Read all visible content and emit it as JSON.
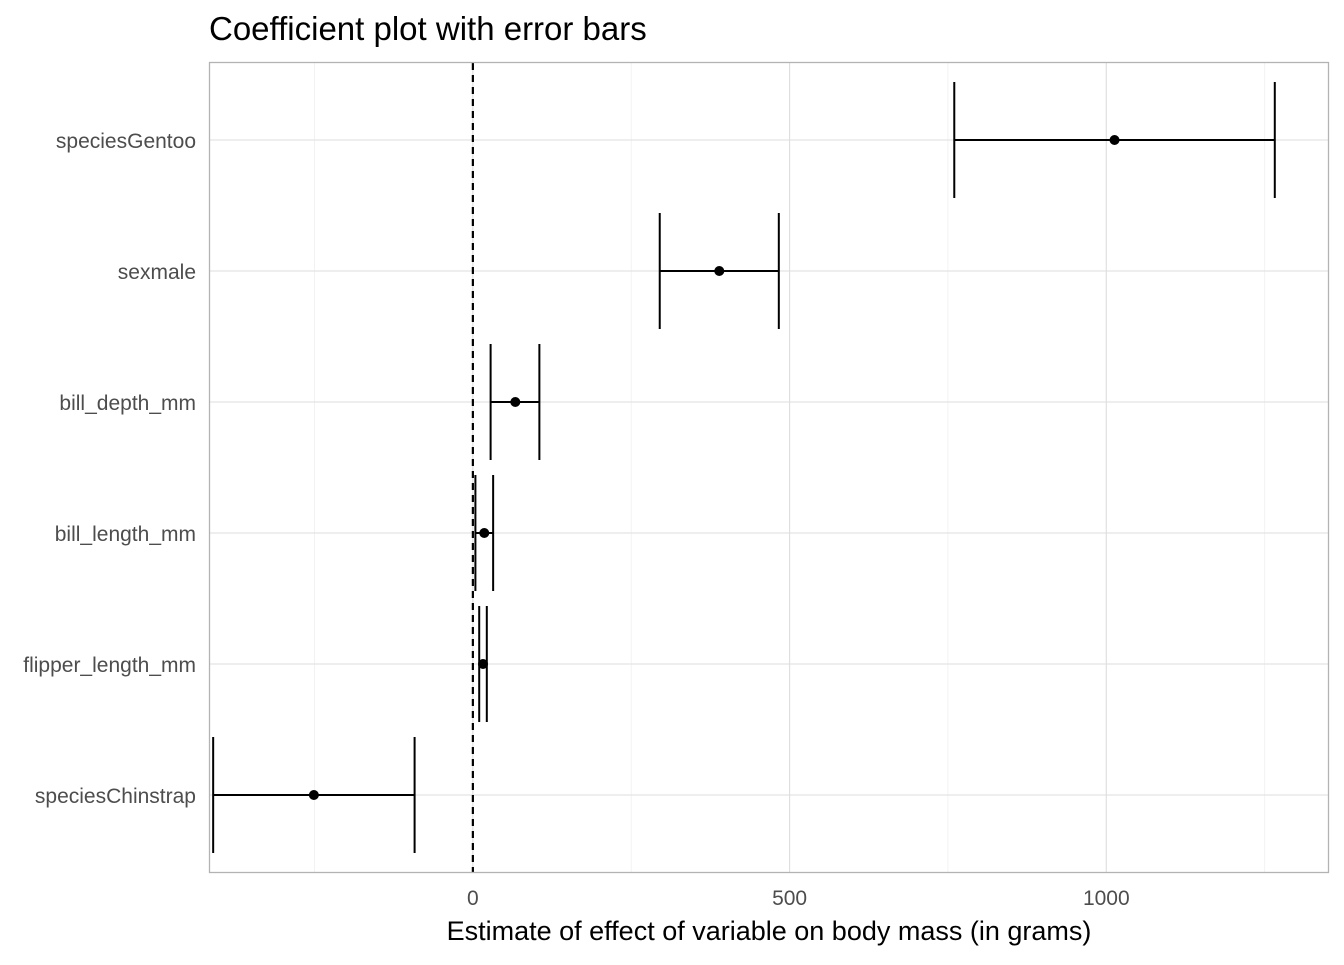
{
  "chart_data": {
    "type": "coefficient-errorbar",
    "title": "Coefficient plot with error bars",
    "xlabel": "Estimate of effect of variable on body mass (in grams)",
    "ylabel": "",
    "xlim": [
      -415,
      1350
    ],
    "x_ticks": [
      0,
      500,
      1000
    ],
    "x_tick_labels": [
      "0",
      "500",
      "1000"
    ],
    "minor_x_ticks": [
      -250,
      250,
      750,
      1250
    ],
    "reference_line": {
      "x": 0,
      "style": "dashed"
    },
    "grid": true,
    "legend": "none",
    "colors": {
      "points": "#000000",
      "errorbars": "#000000",
      "reference_line": "#000000",
      "grid": "#dedede",
      "panel_border": "#b3b3b3",
      "tick_label": "#4d4d4d"
    },
    "categories": [
      "speciesGentoo",
      "sexmale",
      "bill_depth_mm",
      "bill_length_mm",
      "flipper_length_mm",
      "speciesChinstrap"
    ],
    "estimates": [
      {
        "term": "speciesGentoo",
        "estimate": 1013,
        "low": 760,
        "high": 1266
      },
      {
        "term": "sexmale",
        "estimate": 389,
        "low": 295,
        "high": 483
      },
      {
        "term": "bill_depth_mm",
        "estimate": 67,
        "low": 28,
        "high": 105
      },
      {
        "term": "bill_length_mm",
        "estimate": 18,
        "low": 4,
        "high": 32
      },
      {
        "term": "flipper_length_mm",
        "estimate": 16,
        "low": 10,
        "high": 22
      },
      {
        "term": "speciesChinstrap",
        "estimate": -251,
        "low": -410,
        "high": -92
      }
    ]
  }
}
